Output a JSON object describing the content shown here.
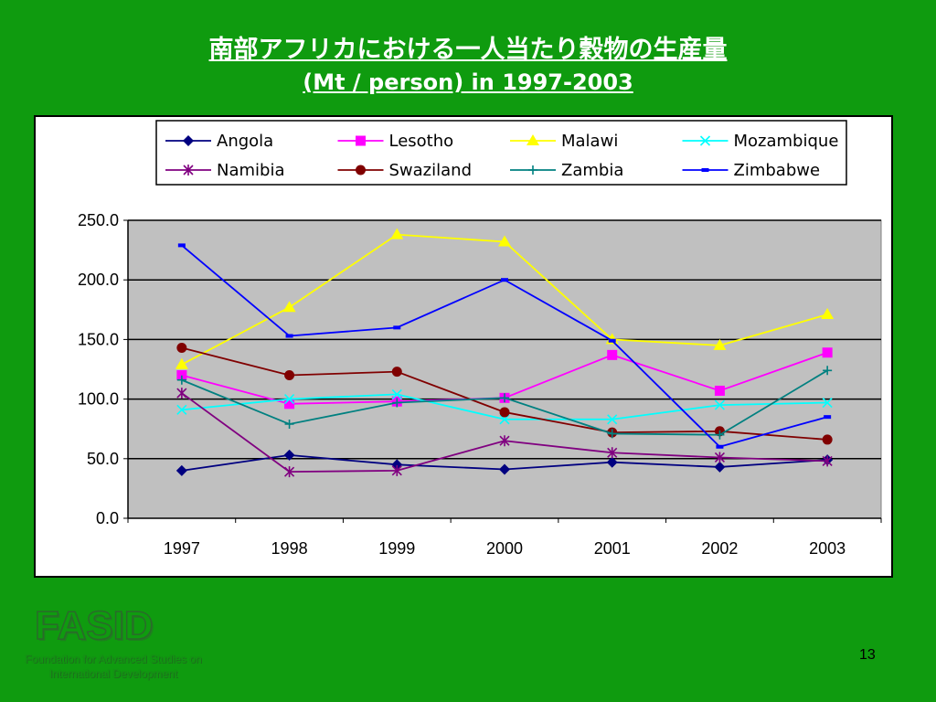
{
  "slide": {
    "title_line1": "南部アフリカにおける一人当たり穀物の生産量",
    "title_line2": "(Mt / person) in 1997-2003",
    "logo": "FASID",
    "logo_subtitle": "Foundation for Advanced Studies on International Development",
    "page_number": "13",
    "background_color": "#0f9b0f"
  },
  "chart_data": {
    "type": "line",
    "x": [
      "1997",
      "1998",
      "1999",
      "2000",
      "2001",
      "2002",
      "2003"
    ],
    "ylim": [
      0,
      250
    ],
    "y_ticks": [
      "0.0",
      "50.0",
      "100.0",
      "150.0",
      "200.0",
      "250.0"
    ],
    "grid": true,
    "legend_placement": "top",
    "plot_background": "#c0c0c0",
    "series": [
      {
        "name": "Angola",
        "color": "#000080",
        "marker": "diamond",
        "values": [
          40,
          53,
          45,
          41,
          47,
          43,
          49
        ]
      },
      {
        "name": "Lesotho",
        "color": "#ff00ff",
        "marker": "square",
        "values": [
          120,
          96,
          98,
          101,
          137,
          107,
          139
        ]
      },
      {
        "name": "Malawi",
        "color": "#ffff00",
        "marker": "triangle",
        "values": [
          129,
          177,
          238,
          232,
          150,
          145,
          171
        ]
      },
      {
        "name": "Mozambique",
        "color": "#00ffff",
        "marker": "x",
        "values": [
          91,
          100,
          104,
          83,
          83,
          95,
          97
        ]
      },
      {
        "name": "Namibia",
        "color": "#800080",
        "marker": "star",
        "values": [
          105,
          39,
          40,
          65,
          55,
          51,
          48
        ]
      },
      {
        "name": "Swaziland",
        "color": "#800000",
        "marker": "circle",
        "values": [
          143,
          120,
          123,
          89,
          72,
          73,
          66
        ]
      },
      {
        "name": "Zambia",
        "color": "#008080",
        "marker": "plus",
        "values": [
          116,
          79,
          97,
          101,
          71,
          70,
          124
        ]
      },
      {
        "name": "Zimbabwe",
        "color": "#0000ff",
        "marker": "dash",
        "values": [
          229,
          153,
          160,
          200,
          149,
          60,
          85
        ]
      }
    ]
  }
}
